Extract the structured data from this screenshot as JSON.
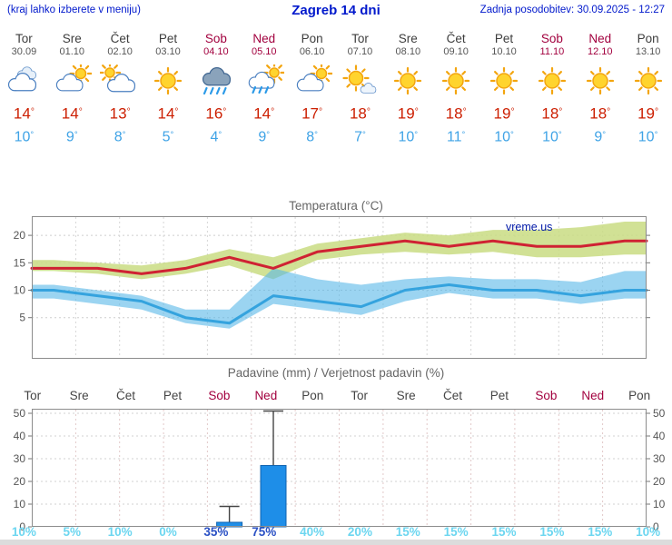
{
  "header": {
    "hint": "(kraj lahko izberete v meniju)",
    "title": "Zagreb 14 dni",
    "updated": "Zadnja posodobitev: 30.09.2025 - 12:27"
  },
  "strings": {
    "degree": "°"
  },
  "colors": {
    "header_blue": "#0018cc",
    "weekend_red": "#a2003e",
    "high_red": "#cc1e00",
    "low_blue": "#3fa3e6",
    "bar_blue": "#1e8ee8",
    "percent_cyan": "#6cd6f0",
    "percent_strong": "#2a50c4",
    "band_green": "#c9dc82",
    "band_blue": "#58b8e8",
    "line_red": "#cf2233",
    "line_blue": "#35a3de"
  },
  "forecast_days": [
    {
      "day": "Tor",
      "date": "30.09",
      "weekend": false,
      "icon": "cloud",
      "high": "14",
      "low": "10"
    },
    {
      "day": "Sre",
      "date": "01.10",
      "weekend": false,
      "icon": "sun-cloud",
      "high": "14",
      "low": "9"
    },
    {
      "day": "Čet",
      "date": "02.10",
      "weekend": false,
      "icon": "cloud-sun",
      "high": "13",
      "low": "8"
    },
    {
      "day": "Pet",
      "date": "03.10",
      "weekend": false,
      "icon": "sun",
      "high": "14",
      "low": "5"
    },
    {
      "day": "Sob",
      "date": "04.10",
      "weekend": true,
      "icon": "rain",
      "high": "16",
      "low": "4"
    },
    {
      "day": "Ned",
      "date": "05.10",
      "weekend": true,
      "icon": "sun-rain",
      "high": "14",
      "low": "9"
    },
    {
      "day": "Pon",
      "date": "06.10",
      "weekend": false,
      "icon": "sun-cloud",
      "high": "17",
      "low": "8"
    },
    {
      "day": "Tor",
      "date": "07.10",
      "weekend": false,
      "icon": "sun-small-cloud",
      "high": "18",
      "low": "7"
    },
    {
      "day": "Sre",
      "date": "08.10",
      "weekend": false,
      "icon": "sun",
      "high": "19",
      "low": "10"
    },
    {
      "day": "Čet",
      "date": "09.10",
      "weekend": false,
      "icon": "sun",
      "high": "18",
      "low": "11"
    },
    {
      "day": "Pet",
      "date": "10.10",
      "weekend": false,
      "icon": "sun",
      "high": "19",
      "low": "10"
    },
    {
      "day": "Sob",
      "date": "11.10",
      "weekend": true,
      "icon": "sun",
      "high": "18",
      "low": "10"
    },
    {
      "day": "Ned",
      "date": "12.10",
      "weekend": true,
      "icon": "sun",
      "high": "18",
      "low": "9"
    },
    {
      "day": "Pon",
      "date": "13.10",
      "weekend": false,
      "icon": "sun",
      "high": "19",
      "low": "10"
    }
  ],
  "chart_data": [
    {
      "type": "line",
      "title": "Temperatura (°C)",
      "watermark": "vreme.us",
      "categories": [
        "Tor 30.09",
        "Sre 01.10",
        "Čet 02.10",
        "Pet 03.10",
        "Sob 04.10",
        "Ned 05.10",
        "Pon 06.10",
        "Tor 07.10",
        "Sre 08.10",
        "Čet 09.10",
        "Pet 10.10",
        "Sob 11.10",
        "Ned 12.10",
        "Pon 13.10"
      ],
      "ylim": [
        -2.5,
        23.5
      ],
      "yticks": [
        5,
        10,
        15,
        20
      ],
      "grid": true,
      "legend": false,
      "series": [
        {
          "name": "Max temperatura",
          "color": "#cf2233",
          "values": [
            14,
            14,
            13,
            14,
            16,
            14,
            17,
            18,
            19,
            18,
            19,
            18,
            18,
            19
          ]
        },
        {
          "name": "Min temperatura",
          "color": "#35a3de",
          "values": [
            10,
            9,
            8,
            5,
            4,
            9,
            8,
            7,
            10,
            11,
            10,
            10,
            9,
            10
          ]
        }
      ],
      "bands": [
        {
          "name": "Razpon max temperature",
          "color": "#c9dc82",
          "opacity": 0.85,
          "upper": [
            15.5,
            15,
            14.5,
            15.5,
            17.5,
            16,
            18.5,
            19.5,
            20.5,
            20,
            21,
            21,
            21.5,
            22.5
          ],
          "lower": [
            13.5,
            13,
            12,
            13,
            14.5,
            12,
            15.5,
            16.5,
            17,
            16.5,
            17,
            16,
            16,
            16.5
          ]
        },
        {
          "name": "Razpon min temperature",
          "color": "#58b8e8",
          "opacity": 0.6,
          "upper": [
            11,
            10,
            9,
            6.5,
            6.5,
            14,
            12,
            11,
            12,
            12.5,
            12,
            12,
            11.5,
            13.5
          ],
          "lower": [
            8.5,
            7.5,
            6.5,
            4,
            3,
            7.5,
            6.5,
            5.5,
            8,
            9.5,
            8.5,
            8.5,
            7.5,
            8.5
          ]
        }
      ]
    },
    {
      "type": "bar",
      "title": "Padavine (mm) / Verjetnost padavin (%)",
      "categories": [
        "Tor",
        "Sre",
        "Čet",
        "Pet",
        "Sob",
        "Ned",
        "Pon",
        "Tor",
        "Sre",
        "Čet",
        "Pet",
        "Sob",
        "Ned",
        "Pon"
      ],
      "weekend": [
        false,
        false,
        false,
        false,
        true,
        true,
        false,
        false,
        false,
        false,
        false,
        true,
        true,
        false
      ],
      "ylim": [
        0,
        52
      ],
      "yticks": [
        0,
        10,
        20,
        30,
        40,
        50
      ],
      "bar_color": "#1e8ee8",
      "precip_mm": [
        0,
        0,
        0,
        0,
        2,
        27,
        0,
        0,
        0,
        0,
        0,
        0,
        0,
        0
      ],
      "whisker_max_mm": [
        0,
        0,
        0,
        0,
        9,
        51,
        0,
        0,
        0,
        0,
        0,
        0,
        0,
        0
      ],
      "probability": [
        {
          "label": "10%",
          "strong": false
        },
        {
          "label": "5%",
          "strong": false
        },
        {
          "label": "10%",
          "strong": false
        },
        {
          "label": "0%",
          "strong": false
        },
        {
          "label": "35%",
          "strong": true
        },
        {
          "label": "75%",
          "strong": true
        },
        {
          "label": "40%",
          "strong": false
        },
        {
          "label": "20%",
          "strong": false
        },
        {
          "label": "15%",
          "strong": false
        },
        {
          "label": "15%",
          "strong": false
        },
        {
          "label": "15%",
          "strong": false
        },
        {
          "label": "15%",
          "strong": false
        },
        {
          "label": "15%",
          "strong": false
        },
        {
          "label": "10%",
          "strong": false
        }
      ]
    }
  ]
}
